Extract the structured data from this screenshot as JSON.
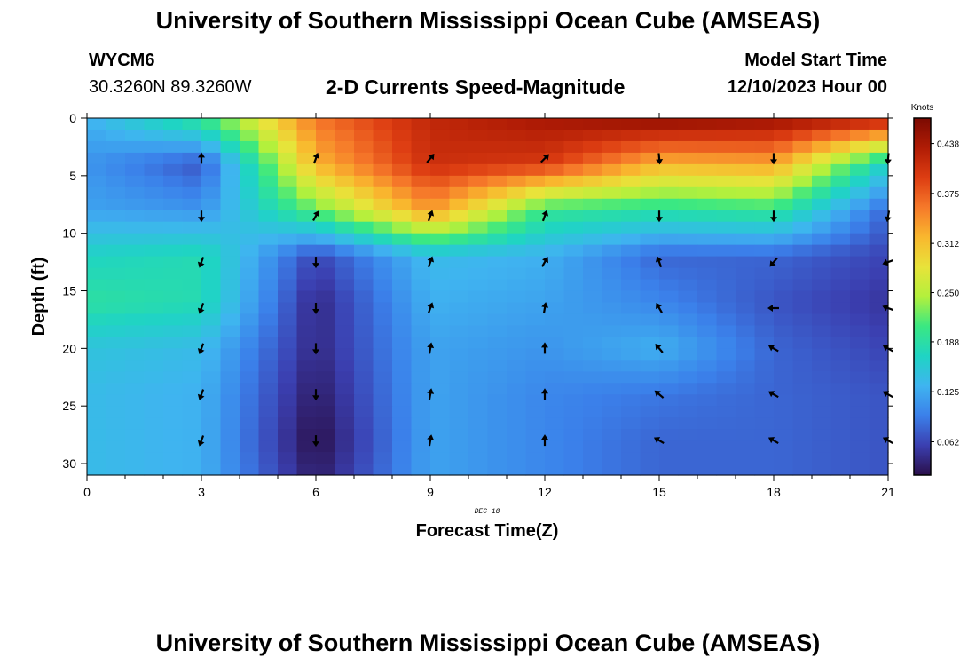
{
  "header": {
    "title": "University of Southern Mississippi Ocean Cube (AMSEAS)",
    "station": "WYCM6",
    "coords": "30.3260N  89.3260W",
    "subtitle": "2-D Currents Speed-Magnitude",
    "model_label": "Model Start Time",
    "model_time": "12/10/2023 Hour 00"
  },
  "footer": {
    "title": "University of Southern Mississippi Ocean Cube (AMSEAS)"
  },
  "chart_data": {
    "type": "heatmap",
    "title": "2-D Currents Speed-Magnitude",
    "xlabel": "Forecast Time(Z)",
    "ylabel": "Depth (ft)",
    "date_annotation": "DEC 10",
    "xlim": [
      0,
      21
    ],
    "ylim": [
      0,
      31
    ],
    "y_inverted": true,
    "x_ticks": [
      0,
      3,
      6,
      9,
      12,
      15,
      18,
      21
    ],
    "y_ticks": [
      0,
      5,
      10,
      15,
      20,
      25,
      30
    ],
    "colorbar": {
      "label": "Knots",
      "range": [
        0.02,
        0.47
      ],
      "ticks": [
        "0.062",
        "0.125",
        "0.188",
        "0.250",
        "0.312",
        "0.375",
        "0.438"
      ],
      "colors": [
        "#2a0f4a",
        "#3b3fb0",
        "#3b80ea",
        "#3fb4f0",
        "#1fd4c4",
        "#3ae882",
        "#b3f03c",
        "#e8e33a",
        "#f9b72e",
        "#f6792a",
        "#dd3d12",
        "#b01c05",
        "#7b0a02"
      ]
    },
    "speed_grid": {
      "times": [
        0,
        3,
        6,
        9,
        12,
        15,
        18,
        21
      ],
      "depths": [
        0,
        4,
        8,
        12,
        16,
        20,
        24,
        28,
        31
      ],
      "values_knots": [
        [
          0.13,
          0.2,
          0.36,
          0.42,
          0.44,
          0.46,
          0.45,
          0.43
        ],
        [
          0.11,
          0.07,
          0.32,
          0.41,
          0.4,
          0.32,
          0.33,
          0.16
        ],
        [
          0.12,
          0.11,
          0.22,
          0.34,
          0.2,
          0.19,
          0.2,
          0.08
        ],
        [
          0.17,
          0.18,
          0.06,
          0.14,
          0.13,
          0.08,
          0.08,
          0.06
        ],
        [
          0.19,
          0.18,
          0.04,
          0.13,
          0.12,
          0.1,
          0.07,
          0.05
        ],
        [
          0.15,
          0.14,
          0.04,
          0.12,
          0.11,
          0.13,
          0.08,
          0.06
        ],
        [
          0.14,
          0.13,
          0.03,
          0.12,
          0.1,
          0.09,
          0.08,
          0.07
        ],
        [
          0.14,
          0.13,
          0.02,
          0.12,
          0.1,
          0.08,
          0.08,
          0.07
        ],
        [
          0.14,
          0.13,
          0.03,
          0.12,
          0.1,
          0.08,
          0.08,
          0.07
        ]
      ]
    },
    "vectors": {
      "times": [
        3,
        6,
        9,
        12,
        15,
        18,
        21
      ],
      "depths": [
        3.5,
        8.5,
        12.5,
        16.5,
        20,
        24,
        28
      ],
      "angles_deg_clockwise_from_north": [
        [
          0,
          20,
          40,
          45,
          175,
          180,
          185
        ],
        [
          180,
          30,
          20,
          20,
          180,
          180,
          190
        ],
        [
          200,
          180,
          20,
          30,
          340,
          220,
          250
        ],
        [
          200,
          180,
          20,
          10,
          330,
          270,
          290
        ],
        [
          200,
          180,
          10,
          0,
          320,
          300,
          300
        ],
        [
          200,
          180,
          10,
          0,
          310,
          300,
          300
        ],
        [
          200,
          180,
          10,
          0,
          300,
          300,
          300
        ]
      ]
    }
  }
}
